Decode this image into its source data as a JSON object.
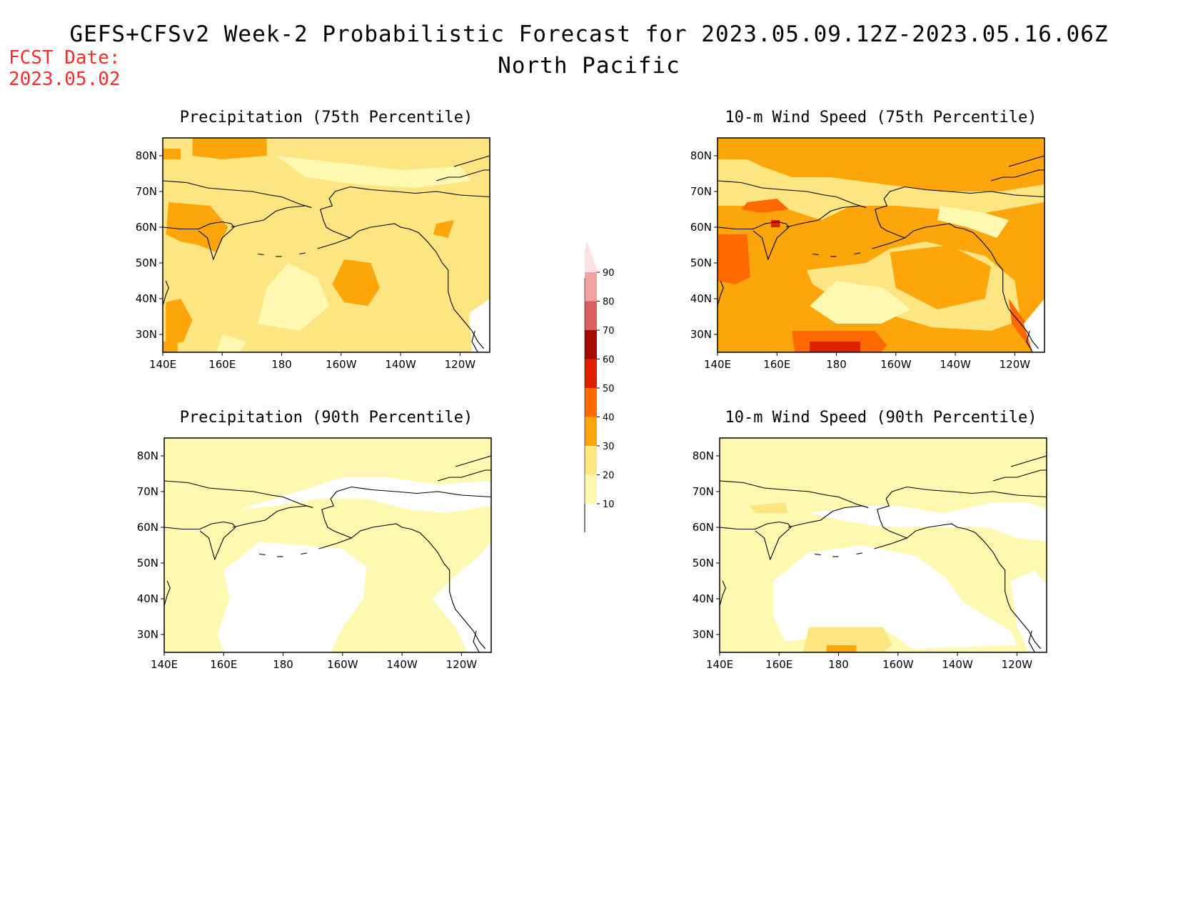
{
  "header": {
    "title": "GEFS+CFSv2 Week-2 Probabilistic Forecast for 2023.05.09.12Z-2023.05.16.06Z",
    "subtitle": "North Pacific",
    "fcst_label": "FCST Date:",
    "fcst_date": "2023.05.02"
  },
  "axes": {
    "x_ticks": [
      "140E",
      "160E",
      "180",
      "160W",
      "140W",
      "120W"
    ],
    "y_ticks": [
      "80N",
      "70N",
      "60N",
      "50N",
      "40N",
      "30N"
    ]
  },
  "panels": [
    {
      "title": "Precipitation (75th Percentile)",
      "field": "p75"
    },
    {
      "title": "10-m Wind Speed (75th Percentile)",
      "field": "w75"
    },
    {
      "title": "Precipitation (90th Percentile)",
      "field": "p90"
    },
    {
      "title": "10-m Wind Speed (90th Percentile)",
      "field": "w90"
    }
  ],
  "colorbar": {
    "labels": [
      "10",
      "20",
      "30",
      "40",
      "50",
      "60",
      "70",
      "80",
      "90"
    ],
    "colors": [
      "#fff8b0",
      "#fde582",
      "#fca60c",
      "#ff6a00",
      "#e01e00",
      "#a50a00",
      "#d9605e",
      "#f2a2a3",
      "#fde2e3"
    ]
  },
  "colors": {
    "white": "#ffffff",
    "light_yellow": "#fff8b0",
    "yellow": "#fde582",
    "orange": "#fca60c",
    "dark_orange": "#ff6a00",
    "red": "#e01e00",
    "dark_red": "#a50a00"
  }
}
